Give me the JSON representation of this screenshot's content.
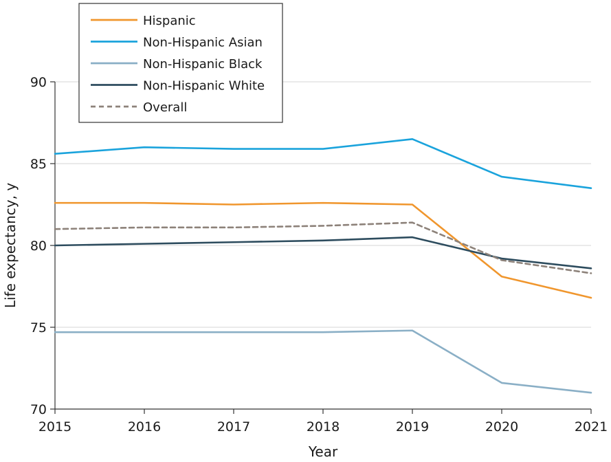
{
  "chart_data": {
    "type": "line",
    "xlabel": "Year",
    "ylabel": "Life expectancy, y",
    "x": [
      2015,
      2016,
      2017,
      2018,
      2019,
      2020,
      2021
    ],
    "xlim": [
      2015,
      2021
    ],
    "ylim": [
      70,
      90
    ],
    "yticks": [
      70,
      75,
      80,
      85,
      90
    ],
    "grid": true,
    "legend_position": "top-left",
    "series": [
      {
        "name": "Hispanic",
        "color": "#f0962d",
        "dashed": false,
        "values": [
          82.6,
          82.6,
          82.5,
          82.6,
          82.5,
          78.1,
          76.8
        ]
      },
      {
        "name": "Non-Hispanic Asian",
        "color": "#1aa3dc",
        "dashed": false,
        "values": [
          85.6,
          86.0,
          85.9,
          85.9,
          86.5,
          84.2,
          83.5
        ]
      },
      {
        "name": "Non-Hispanic Black",
        "color": "#8aafc6",
        "dashed": false,
        "values": [
          74.7,
          74.7,
          74.7,
          74.7,
          74.8,
          71.6,
          71.0
        ]
      },
      {
        "name": "Non-Hispanic White",
        "color": "#2d4c5e",
        "dashed": false,
        "values": [
          80.0,
          80.1,
          80.2,
          80.3,
          80.5,
          79.2,
          78.6
        ]
      },
      {
        "name": "Overall",
        "color": "#8d827a",
        "dashed": true,
        "values": [
          81.0,
          81.1,
          81.1,
          81.2,
          81.4,
          79.1,
          78.3
        ]
      }
    ]
  }
}
